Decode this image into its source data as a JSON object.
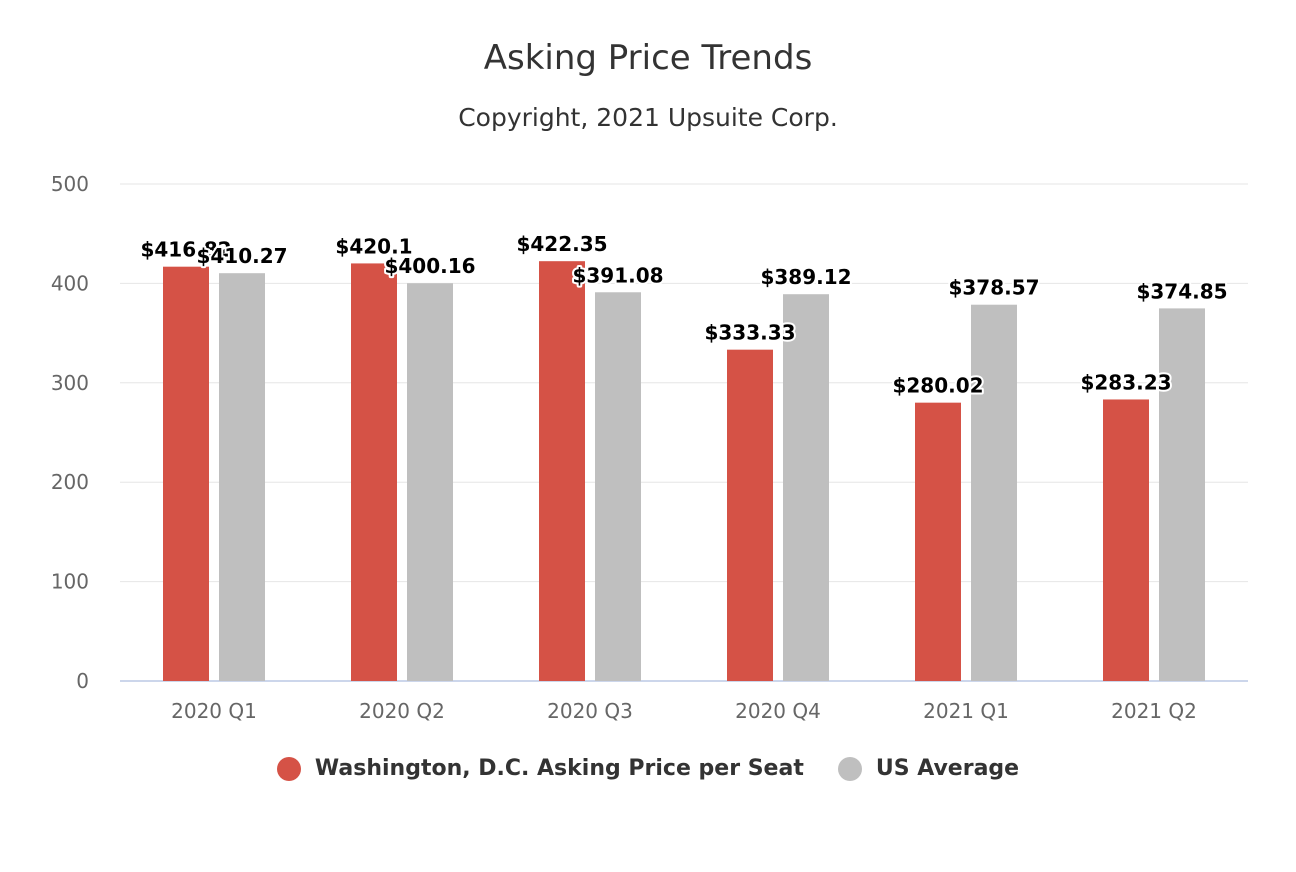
{
  "chart_data": {
    "type": "bar",
    "title": "Asking Price Trends",
    "subtitle": "Copyright, 2021 Upsuite Corp.",
    "categories": [
      "2020 Q1",
      "2020 Q2",
      "2020 Q3",
      "2020 Q4",
      "2021 Q1",
      "2021 Q2"
    ],
    "series": [
      {
        "name": "Washington, D.C. Asking Price per Seat",
        "color": "#d55246",
        "values": [
          416.82,
          420.1,
          422.35,
          333.33,
          280.02,
          283.23
        ],
        "labels": [
          "$416.82",
          "$420.1",
          "$422.35",
          "$333.33",
          "$280.02",
          "$283.23"
        ]
      },
      {
        "name": "US Average",
        "color": "#bfbfbf",
        "values": [
          410.27,
          400.16,
          391.08,
          389.12,
          378.57,
          374.85
        ],
        "labels": [
          "$410.27",
          "$400.16",
          "$391.08",
          "$389.12",
          "$378.57",
          "$374.85"
        ]
      }
    ],
    "yticks": [
      "0",
      "100",
      "200",
      "300",
      "400",
      "500"
    ],
    "ylim": [
      0,
      500
    ],
    "grid": true,
    "legend": "bottom-center"
  }
}
